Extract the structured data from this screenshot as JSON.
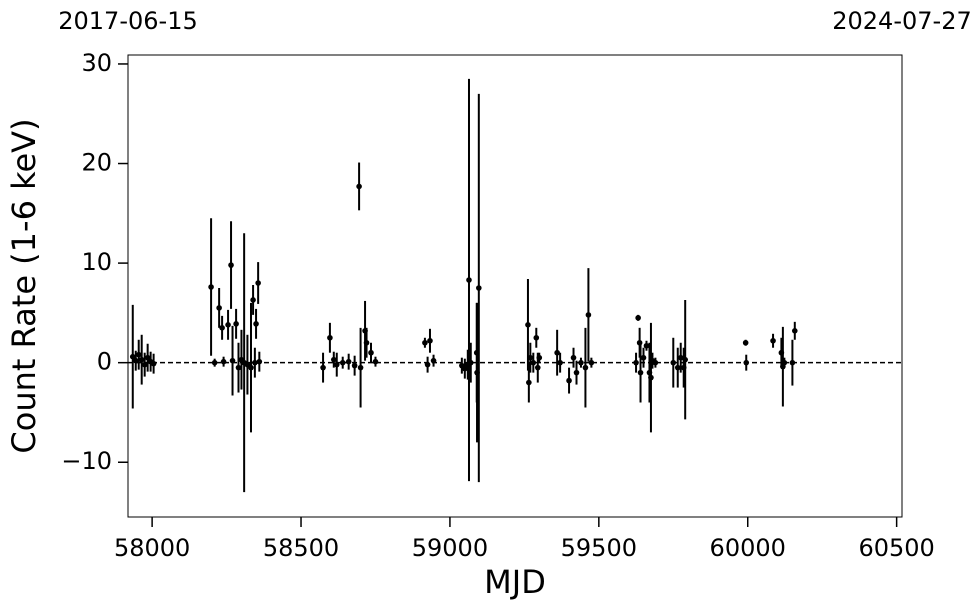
{
  "chart_data": {
    "type": "errorbar",
    "xlabel": "MJD",
    "ylabel": "Count Rate (1-6 keV)",
    "xlim": [
      57919,
      60518
    ],
    "ylim": [
      -15.5,
      30.9
    ],
    "xticks": [
      58000,
      58500,
      59000,
      59500,
      60000,
      60500
    ],
    "yticks": [
      {
        "value": -10,
        "label": "−10"
      },
      0,
      10,
      20,
      30
    ],
    "x2ticks": [
      {
        "value": 57919,
        "label": "2017-06-15"
      },
      {
        "value": 60518,
        "label": "2024-07-27"
      }
    ],
    "hline": 0,
    "color": "#000000",
    "x": [
      57935,
      57945,
      57955,
      57965,
      57975,
      57985,
      57995,
      58005,
      58198,
      58210,
      58225,
      58235,
      58240,
      58255,
      58265,
      58270,
      58282,
      58290,
      58300,
      58309,
      58320,
      58332,
      58339,
      58345,
      58349,
      58356,
      58360,
      58574,
      58597,
      58610,
      58620,
      58640,
      58660,
      58680,
      58695,
      58700,
      58715,
      58720,
      58735,
      58750,
      58916,
      58925,
      58933,
      58945,
      59040,
      59050,
      59060,
      59064,
      59070,
      59090,
      59091,
      59097,
      59262,
      59265,
      59270,
      59280,
      59290,
      59295,
      59300,
      59360,
      59370,
      59400,
      59415,
      59425,
      59440,
      59455,
      59465,
      59475,
      59625,
      59632,
      59637,
      59640,
      59650,
      59660,
      59670,
      59675,
      59680,
      59690,
      59750,
      59765,
      59775,
      59785,
      59790,
      59993,
      59995,
      60085,
      60113,
      60118,
      60123,
      60150,
      60158
    ],
    "values": [
      0.6,
      0.2,
      0.8,
      0.3,
      -0.2,
      0.5,
      0.1,
      -0.1,
      7.6,
      0,
      5.5,
      3.5,
      0.1,
      3.8,
      9.8,
      0.2,
      3.9,
      -0.5,
      0.3,
      0,
      -0.2,
      -0.5,
      6.3,
      0,
      3.9,
      8.0,
      0.1,
      -0.5,
      2.5,
      0.3,
      -0.2,
      0,
      0.1,
      -0.3,
      17.7,
      -0.5,
      3.2,
      2,
      1,
      0.1,
      2.0,
      -0.2,
      2.2,
      0.2,
      -0.3,
      -0.6,
      -0.2,
      8.3,
      0,
      1,
      -1,
      7.5,
      3.8,
      -2,
      0.5,
      0,
      2.5,
      -0.5,
      0.5,
      1,
      0,
      -1.8,
      0.5,
      -1,
      0,
      -0.5,
      4.8,
      0,
      0,
      4.5,
      2,
      -1,
      0.5,
      1.7,
      -1,
      -1.5,
      0.2,
      0,
      0,
      -0.5,
      0.5,
      -0.5,
      0.3,
      2,
      0,
      2.2,
      1,
      -0.4,
      0,
      0,
      3.2
    ],
    "errors": [
      5.2,
      1.0,
      1.5,
      2.5,
      1.2,
      1.4,
      1.0,
      1.0,
      6.9,
      0.4,
      2,
      1.2,
      0.5,
      1.5,
      4.4,
      3.5,
      1.5,
      2.5,
      3,
      13,
      3,
      6.5,
      1.5,
      1.5,
      1.5,
      2.1,
      1,
      1.5,
      1.5,
      0.8,
      1.2,
      0.6,
      0.8,
      1,
      2.4,
      4,
      3,
      1.5,
      1,
      0.5,
      0.5,
      0.8,
      1.2,
      0.6,
      0.8,
      1,
      1.5,
      20.2,
      2,
      5,
      7,
      19.5,
      4.6,
      2,
      1.5,
      1,
      1,
      1.5,
      0.5,
      2.3,
      1,
      1.3,
      1,
      1.2,
      0.5,
      4,
      4.7,
      0.5,
      1,
      0.3,
      1.5,
      3,
      1,
      0.5,
      3,
      5.5,
      0.8,
      0.5,
      2.5,
      2,
      1.5,
      2,
      6,
      0.3,
      0.8,
      0.7,
      1.5,
      4,
      0.5,
      2.3,
      0.9
    ]
  }
}
